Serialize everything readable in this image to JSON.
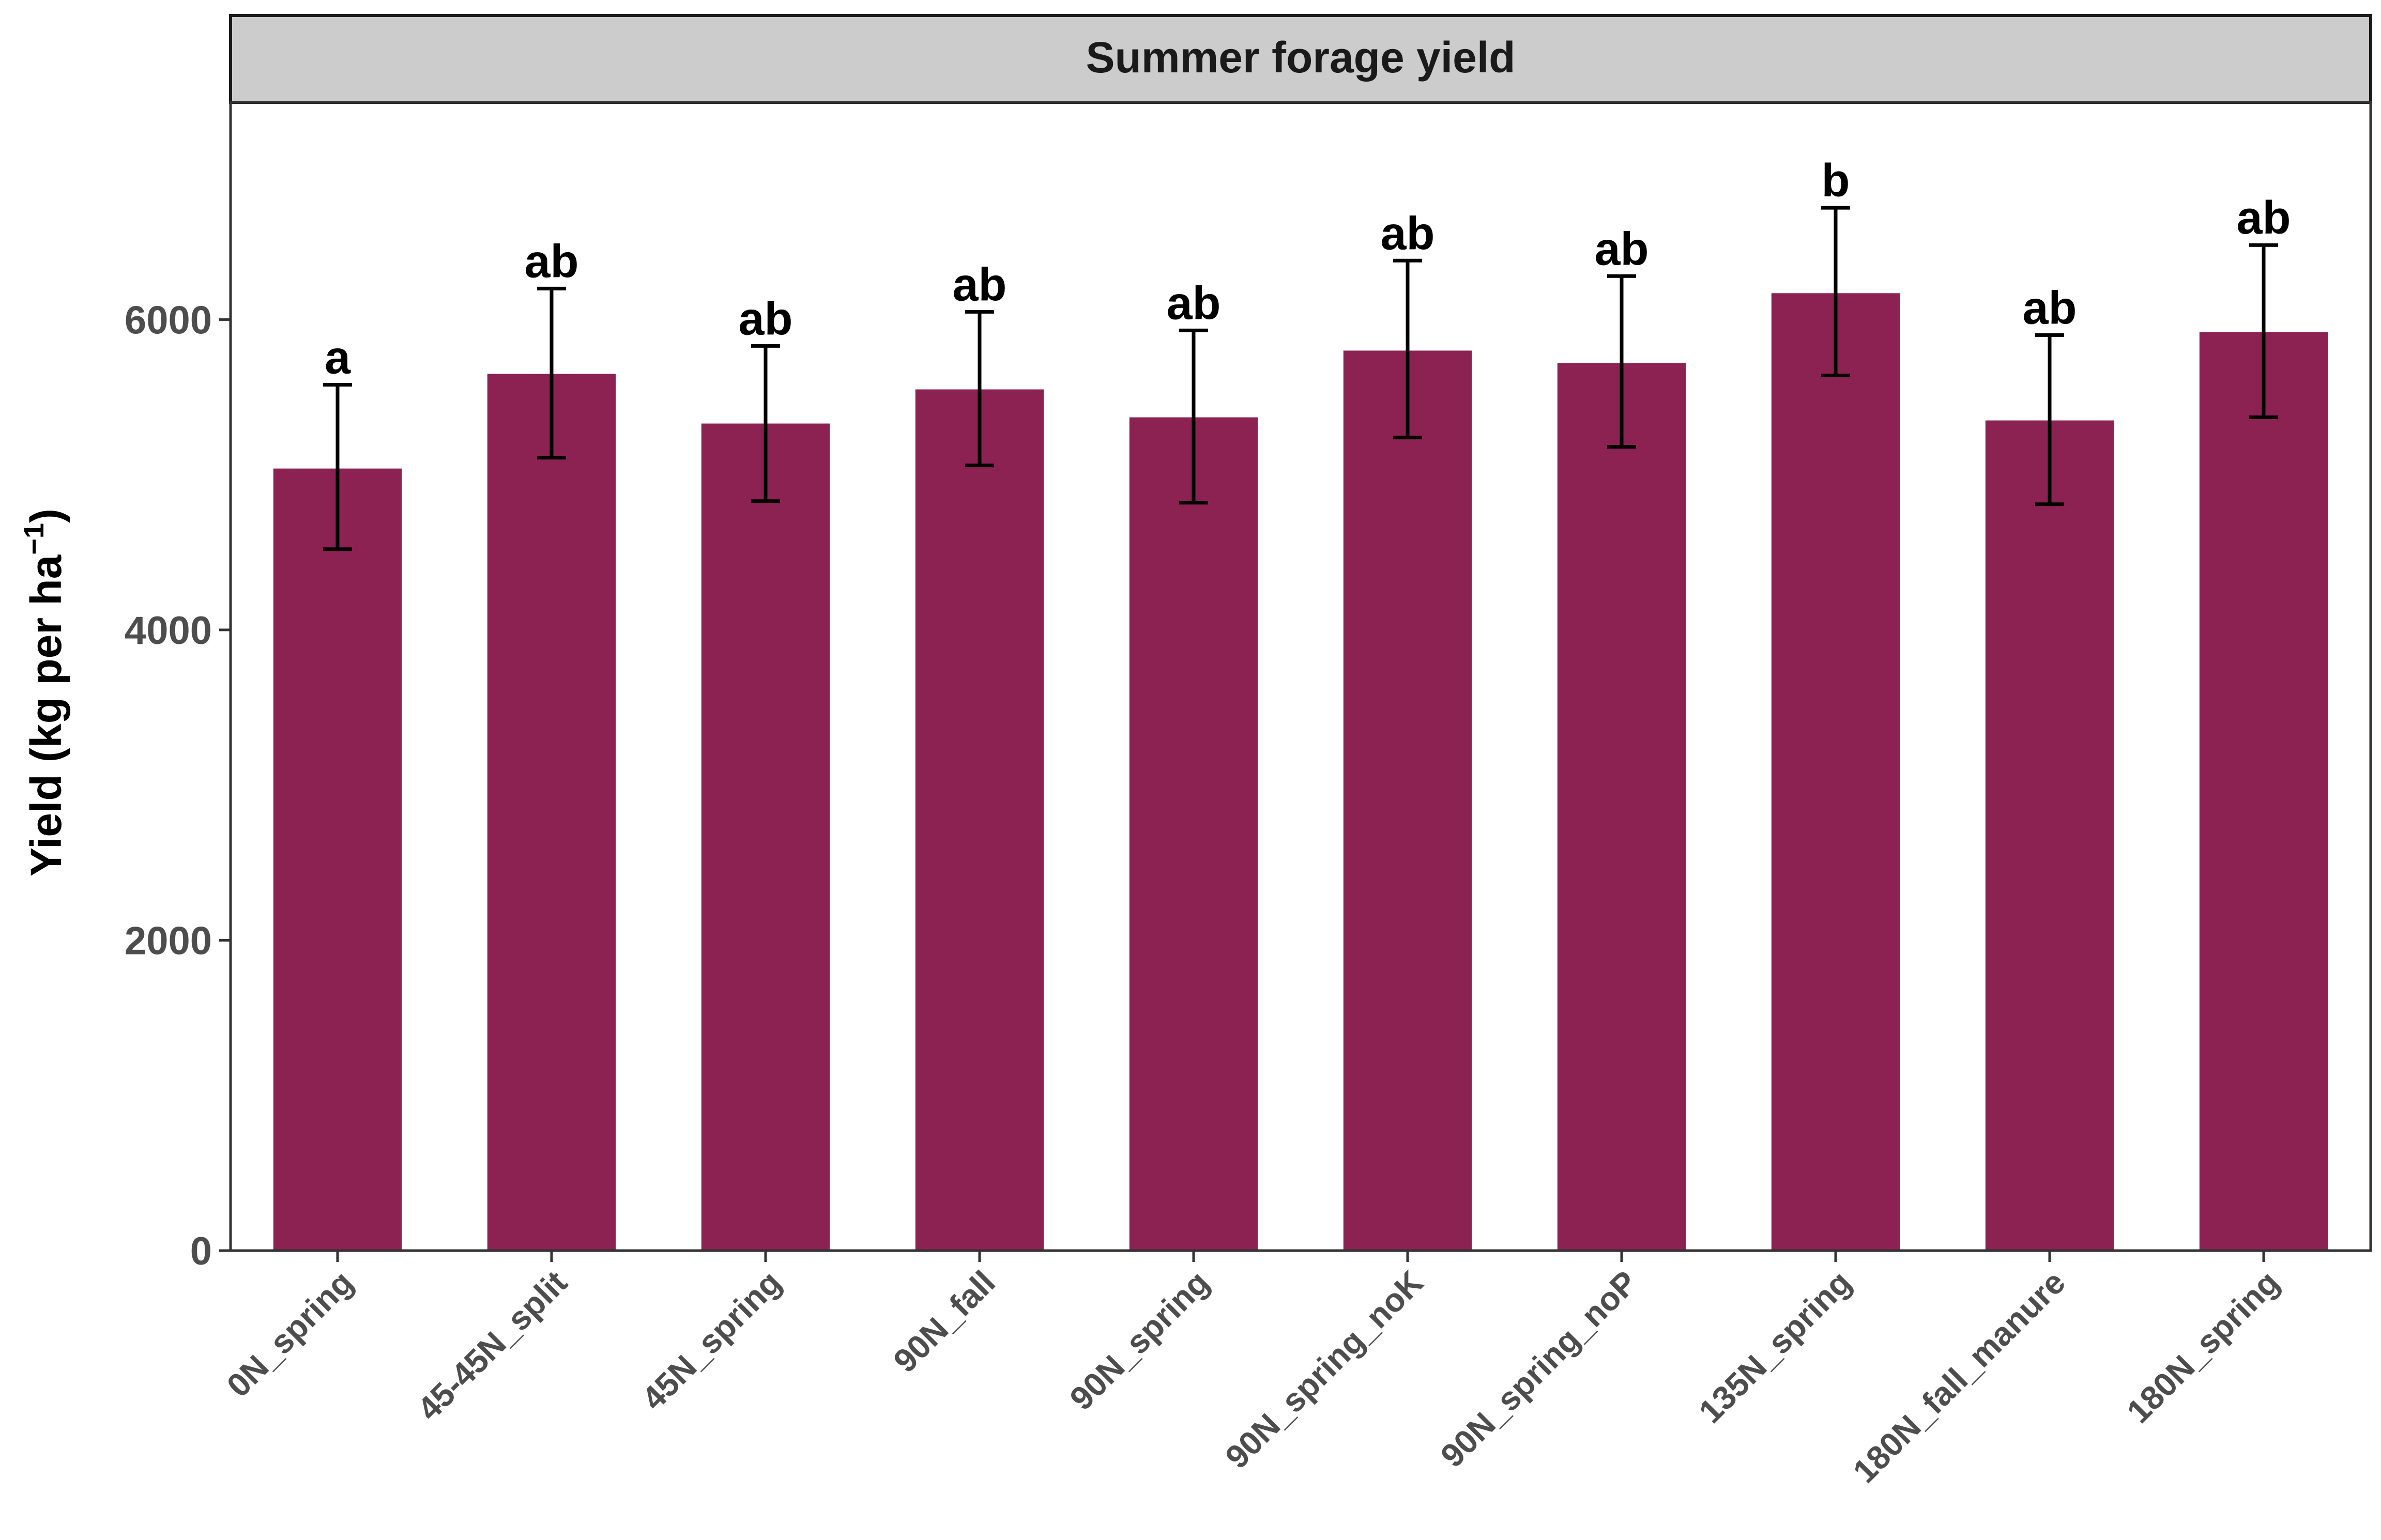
{
  "chart_data": {
    "type": "bar",
    "title": "Summer forage yield",
    "xlabel": "",
    "ylabel": "Yield (kg per ha",
    "ylabel_superscript": "−1",
    "ylabel_close": ")",
    "ylim": [
      0,
      7400
    ],
    "yticks": [
      0,
      2000,
      4000,
      6000
    ],
    "categories": [
      "0N_spring",
      "45-45N_split",
      "45N_spring",
      "90N_fall",
      "90N_spring",
      "90N_spring_noK",
      "90N_spring_noP",
      "135N_spring",
      "180N_fall_manure",
      "180N_spring"
    ],
    "values": [
      5040,
      5650,
      5330,
      5550,
      5370,
      5800,
      5720,
      6170,
      5350,
      5920
    ],
    "error_low": [
      4520,
      5110,
      4830,
      5060,
      4820,
      5240,
      5180,
      5640,
      4810,
      5370
    ],
    "error_high": [
      5580,
      6200,
      5830,
      6050,
      5930,
      6380,
      6280,
      6720,
      5900,
      6480
    ],
    "significance": [
      "a",
      "ab",
      "ab",
      "ab",
      "ab",
      "ab",
      "ab",
      "b",
      "ab",
      "ab"
    ],
    "bar_color": "#8B2252",
    "strip_color": "#CCCCCC",
    "grid": false,
    "legend": "none"
  }
}
